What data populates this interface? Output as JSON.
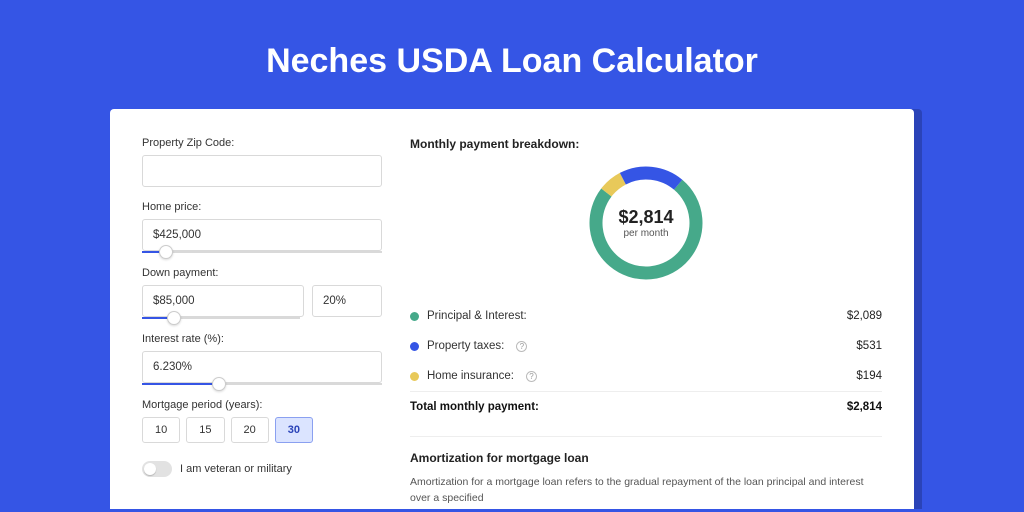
{
  "page": {
    "title": "Neches USDA Loan Calculator",
    "bg_color": "#3555e5",
    "card_bg": "#ffffff",
    "card_shadow_color": "#2a43b8"
  },
  "form": {
    "zip": {
      "label": "Property Zip Code:",
      "value": ""
    },
    "home_price": {
      "label": "Home price:",
      "value": "$425,000",
      "slider_pct": 10
    },
    "down_payment": {
      "label": "Down payment:",
      "value": "$85,000",
      "pct_value": "20%",
      "slider_pct": 20
    },
    "interest_rate": {
      "label": "Interest rate (%):",
      "value": "6.230%",
      "slider_pct": 32
    },
    "mortgage_period": {
      "label": "Mortgage period (years):",
      "options": [
        "10",
        "15",
        "20",
        "30"
      ],
      "active_index": 3
    },
    "veteran": {
      "label": "I am veteran or military",
      "checked": false
    }
  },
  "breakdown": {
    "title": "Monthly payment breakdown:",
    "center_amount": "$2,814",
    "center_sub": "per month",
    "donut": {
      "slices": [
        {
          "color": "#46a98a",
          "fraction": 0.742
        },
        {
          "color": "#e8c95a",
          "fraction": 0.069
        },
        {
          "color": "#3555e5",
          "fraction": 0.189
        }
      ],
      "stroke_width": 13
    },
    "rows": [
      {
        "label": "Principal & Interest:",
        "value": "$2,089",
        "dot": "#46a98a",
        "info": false
      },
      {
        "label": "Property taxes:",
        "value": "$531",
        "dot": "#3555e5",
        "info": true
      },
      {
        "label": "Home insurance:",
        "value": "$194",
        "dot": "#e8c95a",
        "info": true
      }
    ],
    "total": {
      "label": "Total monthly payment:",
      "value": "$2,814"
    }
  },
  "amortization": {
    "title": "Amortization for mortgage loan",
    "text": "Amortization for a mortgage loan refers to the gradual repayment of the loan principal and interest over a specified"
  }
}
